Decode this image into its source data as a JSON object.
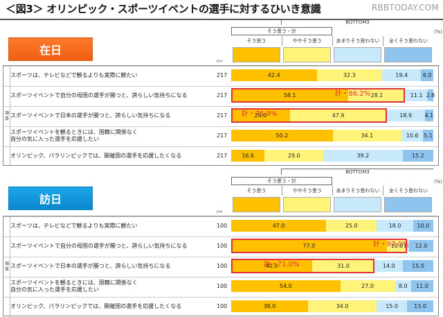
{
  "title": "＜図3＞ オリンピック・スポーツイベントの選手に対するひいき意識",
  "watermark": "RBBTODAY.COM",
  "colors": {
    "so": "#ffc000",
    "yaya": "#fff37a",
    "amari": "#c8e8fb",
    "mattaku": "#8ec4ee",
    "highlight": "#e0303a"
  },
  "legend": {
    "top2_label": "そう思う・計",
    "bottom_label": "BOTTOM3",
    "cat1": "そう思う",
    "cat2": "ややそう思う",
    "cat3": "あまりそう思わない",
    "cat4": "全くそう思わない",
    "unit": "(%)",
    "n_label": "n="
  },
  "item_label": "項目",
  "chart_data": [
    {
      "type": "bar",
      "group": "在日",
      "categories": [
        "スポーツは、テレビなどで観るよりも実際に観たい",
        "スポーツイベントで自分の母国の選手が勝つと、誇らしい気持ちになる",
        "スポーツイベントで日本の選手が勝つと、誇らしい気持ちになる",
        "スポーツイベントを観るときには、国籍に関係なく\n自分の気に入った選手を応援したい",
        "オリンピック、パラリンピックでは、開催国の選手を応援したくなる"
      ],
      "n": [
        "217",
        "217",
        "217",
        "217",
        "217"
      ],
      "series": [
        {
          "name": "そう思う",
          "values": [
            42.4,
            58.1,
            29.0,
            50.2,
            16.6
          ],
          "labels": [
            "42.4",
            "58.1",
            "29.0",
            "50.2",
            "16.6"
          ]
        },
        {
          "name": "ややそう思う",
          "values": [
            32.3,
            28.1,
            47.9,
            34.1,
            29.0
          ],
          "labels": [
            "32.3",
            "28.1",
            "47.9",
            "34.1",
            "29.0"
          ]
        },
        {
          "name": "あまりそう思わない",
          "values": [
            19.4,
            11.1,
            18.9,
            10.6,
            39.2
          ],
          "labels": [
            "19.4",
            "11.1",
            "18.9",
            "10.6",
            "39.2"
          ]
        },
        {
          "name": "全くそう思わない",
          "values": [
            6.0,
            2.8,
            4.1,
            5.1,
            15.2
          ],
          "labels": [
            "6.0",
            "2.8",
            "4.1",
            "5.1",
            "15.2"
          ]
        }
      ],
      "annotations": [
        {
          "row": 1,
          "text": "計・86.2%"
        },
        {
          "row": 2,
          "text": "計・76.9%"
        }
      ]
    },
    {
      "type": "bar",
      "group": "訪日",
      "categories": [
        "スポーツは、テレビなどで観るよりも実際に観たい",
        "スポーツイベントで自分の母国の選手が勝つと、誇らしい気持ちになる",
        "スポーツイベントで日本の選手が勝つと、誇らしい気持ちになる",
        "スポーツイベントを観るときには、国籍に関係なく\n自分の気に入った選手を応援したい",
        "オリンピック、パラリンピックでは、開催国の選手を応援したくなる"
      ],
      "n": [
        "100",
        "100",
        "100",
        "100",
        "100"
      ],
      "series": [
        {
          "name": "そう思う",
          "values": [
            47.0,
            77.0,
            40.0,
            54.0,
            38.0
          ],
          "labels": [
            "47.0",
            "77.0",
            "40.0",
            "54.0",
            "38.0"
          ]
        },
        {
          "name": "ややそう思う",
          "values": [
            25.0,
            10.0,
            31.0,
            27.0,
            34.0
          ],
          "labels": [
            "25.0",
            "10.0",
            "31.0",
            "27.0",
            "34.0"
          ]
        },
        {
          "name": "あまりそう思わない",
          "values": [
            18.0,
            1.0,
            14.0,
            8.0,
            15.0
          ],
          "labels": [
            "18.0",
            "1.0",
            "14.0",
            "8.0",
            "15.0"
          ]
        },
        {
          "name": "全くそう思わない",
          "values": [
            10.0,
            12.0,
            15.0,
            11.0,
            13.0
          ],
          "labels": [
            "10.0",
            "12.0",
            "15.0",
            "11.0",
            "13.0"
          ]
        }
      ],
      "annotations": [
        {
          "row": 1,
          "text": "計・87.0%"
        },
        {
          "row": 2,
          "text": "計・71.0%"
        }
      ]
    }
  ]
}
